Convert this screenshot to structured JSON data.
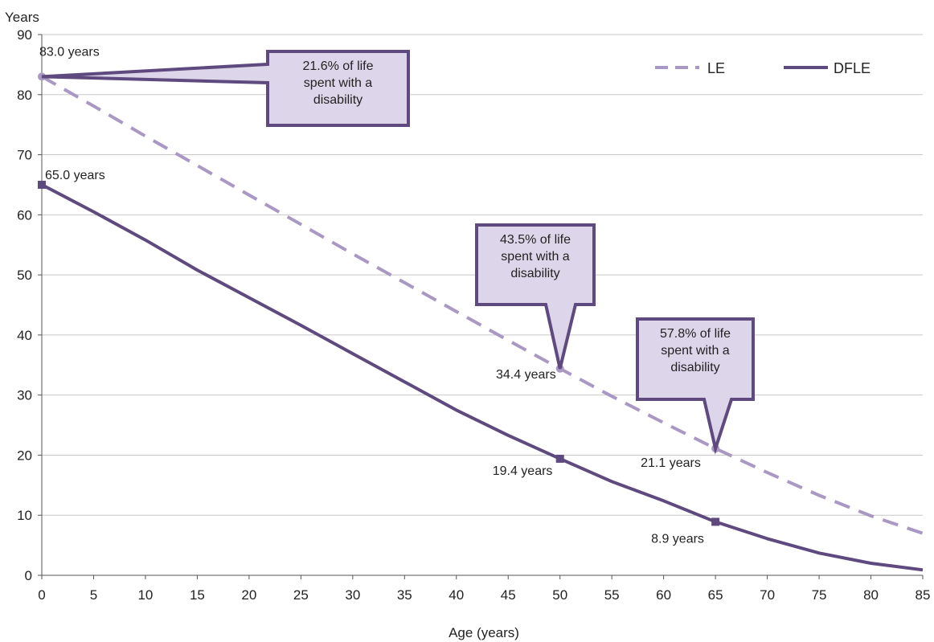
{
  "chart_data": {
    "type": "line",
    "title": "",
    "xlabel": "Age (years)",
    "ylabel": "Years",
    "xlim": [
      0,
      85
    ],
    "ylim": [
      0,
      90
    ],
    "x_ticks": [
      0,
      5,
      10,
      15,
      20,
      25,
      30,
      35,
      40,
      45,
      50,
      55,
      60,
      65,
      70,
      75,
      80,
      85
    ],
    "y_ticks": [
      0,
      10,
      20,
      30,
      40,
      50,
      60,
      70,
      80,
      90
    ],
    "grid": "horizontal",
    "legend_position": "top-right",
    "series": [
      {
        "name": "LE",
        "style": "dashed",
        "color": "#a998c4",
        "x": [
          0,
          5,
          10,
          15,
          20,
          25,
          30,
          35,
          40,
          45,
          50,
          55,
          60,
          65,
          70,
          75,
          80,
          85
        ],
        "y": [
          83.0,
          78.1,
          73.1,
          68.2,
          63.3,
          58.4,
          53.5,
          48.7,
          43.9,
          39.1,
          34.4,
          29.8,
          25.4,
          21.1,
          17.1,
          13.3,
          9.9,
          7.0
        ]
      },
      {
        "name": "DFLE",
        "style": "solid",
        "color": "#5e4a7e",
        "x": [
          0,
          5,
          10,
          15,
          20,
          25,
          30,
          35,
          40,
          45,
          50,
          55,
          60,
          65,
          70,
          75,
          80,
          85
        ],
        "y": [
          65.0,
          60.5,
          55.8,
          50.8,
          46.2,
          41.6,
          36.9,
          32.2,
          27.5,
          23.3,
          19.4,
          15.6,
          12.4,
          8.9,
          6.1,
          3.7,
          2.0,
          0.9
        ]
      }
    ],
    "data_labels": [
      {
        "series": "LE",
        "x": 0,
        "y": 83.0,
        "text": "83.0 years",
        "marker": true
      },
      {
        "series": "DFLE",
        "x": 0,
        "y": 65.0,
        "text": "65.0 years",
        "marker": true
      },
      {
        "series": "LE",
        "x": 50,
        "y": 34.4,
        "text": "34.4 years",
        "marker": true
      },
      {
        "series": "DFLE",
        "x": 50,
        "y": 19.4,
        "text": "19.4 years",
        "marker": true
      },
      {
        "series": "LE",
        "x": 65,
        "y": 21.1,
        "text": "21.1 years",
        "marker": true
      },
      {
        "series": "DFLE",
        "x": 65,
        "y": 8.9,
        "text": "8.9 years",
        "marker": true
      }
    ],
    "annotations": [
      {
        "x": 0,
        "y": 83.0,
        "lines": [
          "21.6% of life",
          "spent with a",
          "disability"
        ]
      },
      {
        "x": 50,
        "y": 34.4,
        "lines": [
          "43.5% of life",
          "spent with a",
          "disability"
        ]
      },
      {
        "x": 65,
        "y": 21.1,
        "lines": [
          "57.8% of life",
          "spent with a",
          "disability"
        ]
      }
    ]
  },
  "colors": {
    "callout_fill": "#ddd6ea",
    "callout_border": "#5e4a7e",
    "grid": "#c8c8c8",
    "axis": "#555555"
  }
}
